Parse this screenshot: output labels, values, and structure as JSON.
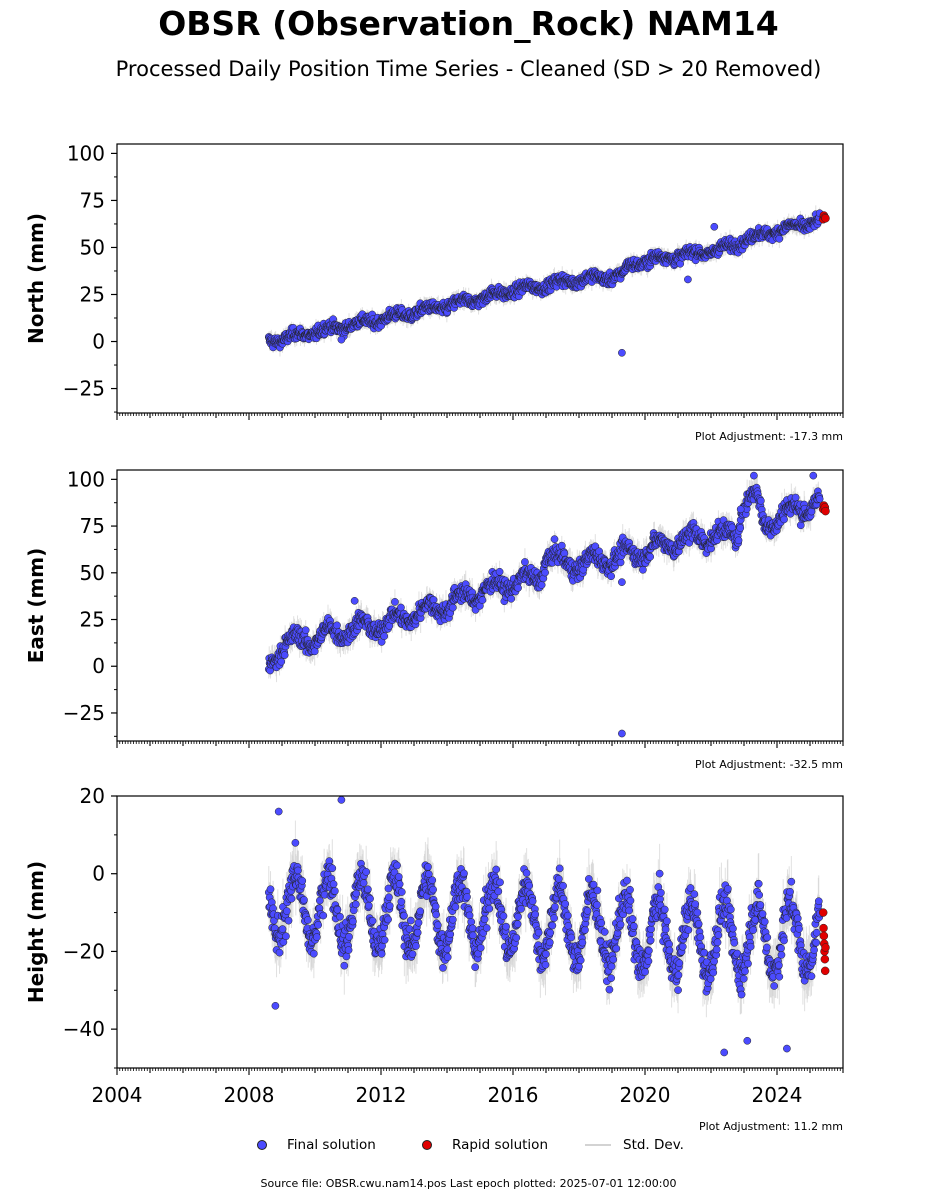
{
  "page": {
    "title": "OBSR (Observation_Rock) NAM14",
    "subtitle": "Processed Daily Position Time Series - Cleaned (SD > 20 Removed)",
    "source_note": "Source file: OBSR.cwu.nam14.pos  Last epoch plotted: 2025-07-01 12:00:00"
  },
  "legend": {
    "final_label": "Final solution",
    "rapid_label": "Rapid solution",
    "sd_label": "Std. Dev.",
    "final_color": "#4b4bff",
    "rapid_color": "#e00000",
    "sd_color": "#d3d3d3"
  },
  "chart_data": [
    {
      "type": "scatter",
      "name": "north",
      "ylabel": "North (mm)",
      "adjustment": "Plot Adjustment: -17.3 mm",
      "xlim": [
        2004,
        2026
      ],
      "ylim": [
        -38,
        105
      ],
      "yticks": [
        -25,
        0,
        25,
        50,
        75,
        100
      ],
      "ytick_labels": [
        "−25",
        "0",
        "25",
        "50",
        "75",
        "100"
      ],
      "trend": [
        [
          2008.6,
          0
        ],
        [
          2010,
          5
        ],
        [
          2012,
          12
        ],
        [
          2014,
          19
        ],
        [
          2016,
          27
        ],
        [
          2018,
          33
        ],
        [
          2019.3,
          35
        ],
        [
          2019.5,
          40
        ],
        [
          2020,
          43
        ],
        [
          2022,
          48
        ],
        [
          2022.5,
          50
        ],
        [
          2023,
          54
        ],
        [
          2024,
          59
        ],
        [
          2025.3,
          64
        ]
      ],
      "noise": 2.5,
      "seasonal_amp": 1.5,
      "final_outliers": [
        {
          "x": 2019.3,
          "y": -6
        },
        {
          "x": 2010.8,
          "y": 1
        },
        {
          "x": 2021.3,
          "y": 33
        },
        {
          "x": 2022.1,
          "y": 61
        }
      ],
      "rapid": [
        {
          "x": 2025.4,
          "y": 65
        },
        {
          "x": 2025.42,
          "y": 67
        },
        {
          "x": 2025.45,
          "y": 66
        },
        {
          "x": 2025.47,
          "y": 65.5
        }
      ]
    },
    {
      "type": "scatter",
      "name": "east",
      "ylabel": "East (mm)",
      "adjustment": "Plot Adjustment: -32.5 mm",
      "xlim": [
        2004,
        2026
      ],
      "ylim": [
        -40,
        105
      ],
      "yticks": [
        -25,
        0,
        25,
        50,
        75,
        100
      ],
      "ytick_labels": [
        "−25",
        "0",
        "25",
        "50",
        "75",
        "100"
      ],
      "trend": [
        [
          2008.6,
          0
        ],
        [
          2009,
          12
        ],
        [
          2010,
          15
        ],
        [
          2011,
          20
        ],
        [
          2012,
          22
        ],
        [
          2013,
          28
        ],
        [
          2014,
          33
        ],
        [
          2015,
          40
        ],
        [
          2016,
          45
        ],
        [
          2016.8,
          47
        ],
        [
          2017,
          60
        ],
        [
          2017.5,
          55
        ],
        [
          2018,
          55
        ],
        [
          2019,
          58
        ],
        [
          2019.5,
          60
        ],
        [
          2020,
          62
        ],
        [
          2021,
          67
        ],
        [
          2022,
          70
        ],
        [
          2022.8,
          70
        ],
        [
          2023,
          90
        ],
        [
          2023.4,
          90
        ],
        [
          2023.6,
          75
        ],
        [
          2024,
          80
        ],
        [
          2024.8,
          85
        ],
        [
          2025.3,
          88
        ]
      ],
      "noise": 4,
      "seasonal_amp": 4,
      "final_outliers": [
        {
          "x": 2019.3,
          "y": -36
        },
        {
          "x": 2011.2,
          "y": 35
        },
        {
          "x": 2019.3,
          "y": 45
        },
        {
          "x": 2023.3,
          "y": 102
        },
        {
          "x": 2025.1,
          "y": 102
        },
        {
          "x": 2022.9,
          "y": 84
        }
      ],
      "rapid": [
        {
          "x": 2025.4,
          "y": 84
        },
        {
          "x": 2025.42,
          "y": 86
        },
        {
          "x": 2025.45,
          "y": 85
        },
        {
          "x": 2025.47,
          "y": 83
        }
      ]
    },
    {
      "type": "scatter",
      "name": "height",
      "ylabel": "Height (mm)",
      "adjustment": "Plot Adjustment: 11.2 mm",
      "xlim": [
        2004,
        2026
      ],
      "ylim": [
        -50,
        20
      ],
      "yticks": [
        -40,
        -20,
        0,
        20
      ],
      "ytick_labels": [
        "−40",
        "−20",
        "0",
        "20"
      ],
      "xticks": [
        2004,
        2008,
        2012,
        2016,
        2020,
        2024
      ],
      "xtick_labels": [
        "2004",
        "2008",
        "2012",
        "2016",
        "2020",
        "2024"
      ],
      "trend": [
        [
          2008.6,
          -8
        ],
        [
          2012,
          -10
        ],
        [
          2016,
          -11
        ],
        [
          2020,
          -16
        ],
        [
          2022,
          -17
        ],
        [
          2025.3,
          -16
        ]
      ],
      "noise": 4,
      "seasonal_amp": 9,
      "final_outliers": [
        {
          "x": 2010.8,
          "y": 19
        },
        {
          "x": 2008.9,
          "y": 16
        },
        {
          "x": 2022.4,
          "y": -46
        },
        {
          "x": 2024.3,
          "y": -45
        },
        {
          "x": 2008.8,
          "y": -34
        },
        {
          "x": 2023.1,
          "y": -43
        }
      ],
      "rapid": [
        {
          "x": 2025.4,
          "y": -10
        },
        {
          "x": 2025.41,
          "y": -14
        },
        {
          "x": 2025.42,
          "y": -16
        },
        {
          "x": 2025.43,
          "y": -18
        },
        {
          "x": 2025.44,
          "y": -20
        },
        {
          "x": 2025.45,
          "y": -22
        },
        {
          "x": 2025.46,
          "y": -25
        },
        {
          "x": 2025.47,
          "y": -19
        }
      ]
    }
  ]
}
